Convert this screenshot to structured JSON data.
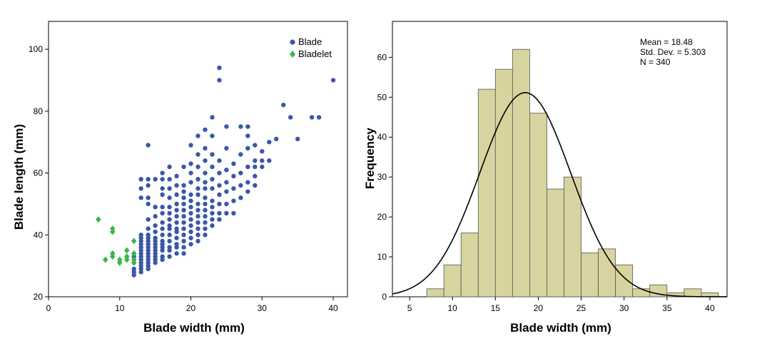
{
  "chart_data": [
    {
      "type": "scatter",
      "xlabel": "Blade width (mm)",
      "ylabel": "Blade length (mm)",
      "xlim": [
        0,
        42
      ],
      "ylim": [
        20,
        109
      ],
      "xticks": [
        0,
        10,
        20,
        30,
        40
      ],
      "yticks": [
        20,
        40,
        60,
        80,
        100
      ],
      "legend_position": "top-right",
      "series": [
        {
          "name": "Blade",
          "color": "#3a57a8",
          "marker": "circle",
          "points": [
            [
              12,
              27
            ],
            [
              12,
              28
            ],
            [
              12,
              29
            ],
            [
              12,
              31
            ],
            [
              12,
              33
            ],
            [
              13,
              28
            ],
            [
              13,
              29
            ],
            [
              13,
              30
            ],
            [
              13,
              31
            ],
            [
              13,
              32
            ],
            [
              13,
              33
            ],
            [
              13,
              34
            ],
            [
              13,
              35
            ],
            [
              13,
              36
            ],
            [
              13,
              37
            ],
            [
              13,
              38
            ],
            [
              13,
              39
            ],
            [
              13,
              40
            ],
            [
              13,
              52
            ],
            [
              13,
              55
            ],
            [
              13,
              58
            ],
            [
              14,
              29
            ],
            [
              14,
              30
            ],
            [
              14,
              31
            ],
            [
              14,
              32
            ],
            [
              14,
              33
            ],
            [
              14,
              34
            ],
            [
              14,
              35
            ],
            [
              14,
              36
            ],
            [
              14,
              37
            ],
            [
              14,
              38
            ],
            [
              14,
              39
            ],
            [
              14,
              40
            ],
            [
              14,
              42
            ],
            [
              14,
              45
            ],
            [
              14,
              50
            ],
            [
              14,
              52
            ],
            [
              14,
              56
            ],
            [
              14,
              58
            ],
            [
              14,
              69
            ],
            [
              15,
              31
            ],
            [
              15,
              32
            ],
            [
              15,
              33
            ],
            [
              15,
              34
            ],
            [
              15,
              35
            ],
            [
              15,
              36
            ],
            [
              15,
              37
            ],
            [
              15,
              38
            ],
            [
              15,
              39
            ],
            [
              15,
              41
            ],
            [
              15,
              43
            ],
            [
              15,
              46
            ],
            [
              15,
              49
            ],
            [
              15,
              58
            ],
            [
              16,
              32
            ],
            [
              16,
              33
            ],
            [
              16,
              35
            ],
            [
              16,
              36
            ],
            [
              16,
              37
            ],
            [
              16,
              38
            ],
            [
              16,
              40
            ],
            [
              16,
              42
            ],
            [
              16,
              44
            ],
            [
              16,
              47
            ],
            [
              16,
              49
            ],
            [
              16,
              53
            ],
            [
              16,
              55
            ],
            [
              16,
              58
            ],
            [
              16,
              60
            ],
            [
              17,
              33
            ],
            [
              17,
              35
            ],
            [
              17,
              36
            ],
            [
              17,
              38
            ],
            [
              17,
              40
            ],
            [
              17,
              42
            ],
            [
              17,
              43
            ],
            [
              17,
              45
            ],
            [
              17,
              47
            ],
            [
              17,
              49
            ],
            [
              17,
              52
            ],
            [
              17,
              55
            ],
            [
              17,
              58
            ],
            [
              17,
              62
            ],
            [
              18,
              34
            ],
            [
              18,
              36
            ],
            [
              18,
              37
            ],
            [
              18,
              39
            ],
            [
              18,
              41
            ],
            [
              18,
              42
            ],
            [
              18,
              44
            ],
            [
              18,
              46
            ],
            [
              18,
              48
            ],
            [
              18,
              50
            ],
            [
              18,
              53
            ],
            [
              18,
              56
            ],
            [
              18,
              59
            ],
            [
              19,
              34
            ],
            [
              19,
              36
            ],
            [
              19,
              38
            ],
            [
              19,
              40
            ],
            [
              19,
              42
            ],
            [
              19,
              44
            ],
            [
              19,
              46
            ],
            [
              19,
              48
            ],
            [
              19,
              50
            ],
            [
              19,
              52
            ],
            [
              19,
              54
            ],
            [
              19,
              56
            ],
            [
              19,
              62
            ],
            [
              20,
              37
            ],
            [
              20,
              39
            ],
            [
              20,
              41
            ],
            [
              20,
              43
            ],
            [
              20,
              45
            ],
            [
              20,
              47
            ],
            [
              20,
              49
            ],
            [
              20,
              51
            ],
            [
              20,
              53
            ],
            [
              20,
              57
            ],
            [
              20,
              60
            ],
            [
              20,
              63
            ],
            [
              20,
              69
            ],
            [
              21,
              38
            ],
            [
              21,
              40
            ],
            [
              21,
              42
            ],
            [
              21,
              44
            ],
            [
              21,
              46
            ],
            [
              21,
              48
            ],
            [
              21,
              50
            ],
            [
              21,
              53
            ],
            [
              21,
              55
            ],
            [
              21,
              58
            ],
            [
              21,
              62
            ],
            [
              21,
              66
            ],
            [
              21,
              72
            ],
            [
              22,
              40
            ],
            [
              22,
              42
            ],
            [
              22,
              44
            ],
            [
              22,
              46
            ],
            [
              22,
              48
            ],
            [
              22,
              50
            ],
            [
              22,
              52
            ],
            [
              22,
              55
            ],
            [
              22,
              57
            ],
            [
              22,
              60
            ],
            [
              22,
              64
            ],
            [
              22,
              68
            ],
            [
              22,
              74
            ],
            [
              23,
              43
            ],
            [
              23,
              45
            ],
            [
              23,
              47
            ],
            [
              23,
              49
            ],
            [
              23,
              51
            ],
            [
              23,
              55
            ],
            [
              23,
              58
            ],
            [
              23,
              62
            ],
            [
              23,
              66
            ],
            [
              23,
              72
            ],
            [
              23,
              78
            ],
            [
              24,
              45
            ],
            [
              24,
              47
            ],
            [
              24,
              50
            ],
            [
              24,
              53
            ],
            [
              24,
              56
            ],
            [
              24,
              60
            ],
            [
              24,
              64
            ],
            [
              24,
              90
            ],
            [
              24,
              94
            ],
            [
              25,
              47
            ],
            [
              25,
              50
            ],
            [
              25,
              54
            ],
            [
              25,
              57
            ],
            [
              25,
              61
            ],
            [
              25,
              68
            ],
            [
              25,
              75
            ],
            [
              26,
              47
            ],
            [
              26,
              51
            ],
            [
              26,
              55
            ],
            [
              26,
              59
            ],
            [
              26,
              63
            ],
            [
              27,
              52
            ],
            [
              27,
              56
            ],
            [
              27,
              60
            ],
            [
              27,
              66
            ],
            [
              27,
              75
            ],
            [
              28,
              54
            ],
            [
              28,
              57
            ],
            [
              28,
              62
            ],
            [
              28,
              68
            ],
            [
              28,
              72
            ],
            [
              28,
              75
            ],
            [
              29,
              56
            ],
            [
              29,
              59
            ],
            [
              29,
              62
            ],
            [
              29,
              64
            ],
            [
              29,
              69
            ],
            [
              30,
              62
            ],
            [
              30,
              64
            ],
            [
              30,
              67
            ],
            [
              31,
              64
            ],
            [
              31,
              70
            ],
            [
              32,
              71
            ],
            [
              33,
              82
            ],
            [
              34,
              78
            ],
            [
              35,
              71
            ],
            [
              37,
              78
            ],
            [
              38,
              78
            ],
            [
              40,
              90
            ]
          ]
        },
        {
          "name": "Bladelet",
          "color": "#3cb54a",
          "marker": "diamond",
          "points": [
            [
              7,
              45
            ],
            [
              8,
              32
            ],
            [
              9,
              41
            ],
            [
              9,
              42
            ],
            [
              9,
              33
            ],
            [
              9,
              34
            ],
            [
              10,
              31
            ],
            [
              10,
              32
            ],
            [
              11,
              33
            ],
            [
              11,
              35
            ],
            [
              11,
              32
            ],
            [
              12,
              31
            ],
            [
              12,
              32
            ],
            [
              12,
              34
            ],
            [
              12,
              38
            ]
          ]
        }
      ]
    },
    {
      "type": "bar",
      "subtype": "histogram",
      "xlabel": "Blade width (mm)",
      "ylabel": "Frequency",
      "xlim": [
        3,
        42
      ],
      "ylim": [
        0,
        69
      ],
      "xticks": [
        5,
        10,
        15,
        20,
        25,
        30,
        35,
        40
      ],
      "yticks": [
        0,
        10,
        20,
        30,
        40,
        50,
        60
      ],
      "bin_width": 2,
      "bin_edges": [
        7,
        9,
        11,
        13,
        15,
        17,
        19,
        21,
        23,
        25,
        27,
        29,
        31,
        33,
        35,
        37,
        39,
        41
      ],
      "values": [
        2,
        8,
        16,
        52,
        57,
        62,
        46,
        27,
        30,
        11,
        12,
        8,
        2,
        3,
        1,
        2,
        1
      ],
      "bar_color": "#d8d49f",
      "normal_curve": {
        "mean": 18.48,
        "std": 5.303,
        "n": 340
      },
      "stats": {
        "mean": "Mean = 18.48",
        "std": "Std. Dev. = 5.303",
        "n": "N = 340"
      },
      "stats_position": "top-right"
    }
  ]
}
